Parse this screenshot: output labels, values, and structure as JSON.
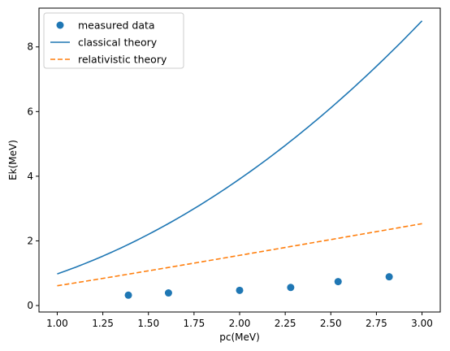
{
  "chart_data": {
    "type": "line",
    "xlabel": "pc(MeV)",
    "ylabel": "Ek(MeV)",
    "xlim": [
      0.9,
      3.1
    ],
    "ylim": [
      -0.2,
      9.2
    ],
    "xticks": [
      "1.00",
      "1.25",
      "1.50",
      "1.75",
      "2.00",
      "2.25",
      "2.50",
      "2.75",
      "3.00"
    ],
    "yticks": [
      "0",
      "2",
      "4",
      "6",
      "8"
    ],
    "grid": false,
    "legend_position": "top-left",
    "series": [
      {
        "name": "measured data",
        "kind": "scatter",
        "color": "#1f77b4",
        "x": [
          1.39,
          1.61,
          2.0,
          2.28,
          2.54,
          2.82
        ],
        "y": [
          0.32,
          0.39,
          0.47,
          0.56,
          0.74,
          0.89
        ]
      },
      {
        "name": "classical theory",
        "kind": "line",
        "color": "#1f77b4",
        "formula": "pc^2 / (2 * 0.511)",
        "x": [
          1.0,
          1.25,
          1.5,
          1.75,
          2.0,
          2.25,
          2.5,
          2.75,
          3.0
        ],
        "y": [
          0.98,
          1.53,
          2.2,
          3.0,
          3.91,
          4.95,
          6.11,
          7.4,
          8.81
        ]
      },
      {
        "name": "relativistic theory",
        "kind": "dashed-line",
        "color": "#ff7f0e",
        "formula": "sqrt(pc^2 + 0.511^2) - 0.511",
        "x": [
          1.0,
          1.25,
          1.5,
          1.75,
          2.0,
          2.25,
          2.5,
          2.75,
          3.0
        ],
        "y": [
          0.61,
          0.84,
          1.07,
          1.31,
          1.55,
          1.8,
          2.04,
          2.29,
          2.53
        ]
      }
    ]
  }
}
